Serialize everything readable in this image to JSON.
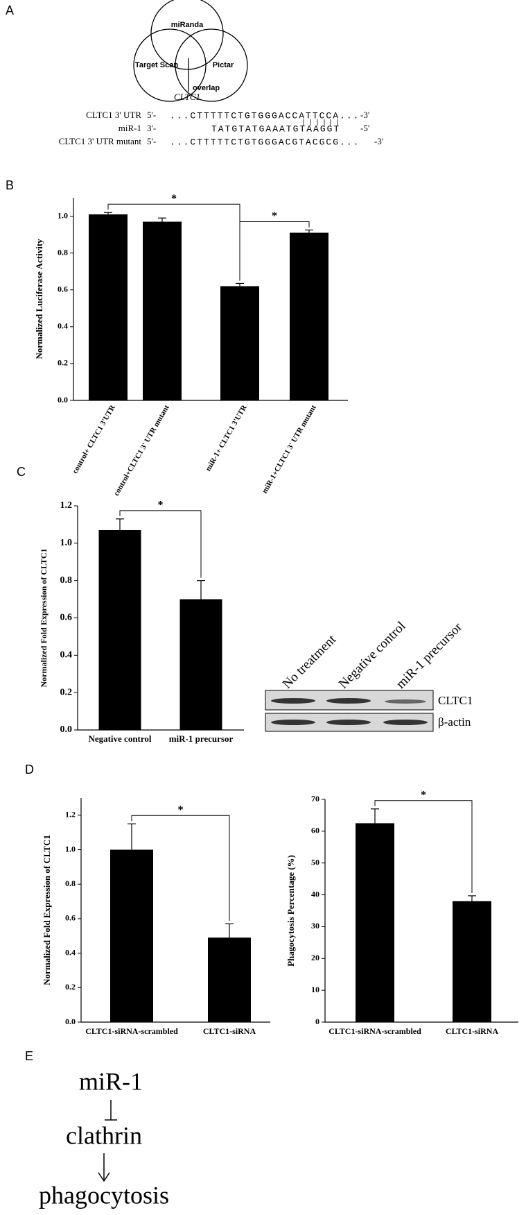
{
  "panel_labels": [
    "A",
    "B",
    "C",
    "D",
    "E"
  ],
  "venn": {
    "sets": [
      "miRanda",
      "Target Scan",
      "Pictar"
    ],
    "overlap_label": "overlap",
    "gene": "CLTC1"
  },
  "sequences": [
    {
      "name": "CLTC1 3' UTR",
      "start": "5'-",
      "seq": "...CTTTTTCTGTGGGACCATTCCA...",
      "end": "-3'"
    },
    {
      "name": "miR-1",
      "start": "3'-",
      "seq": "TATGTATGAAATGTAAGGT",
      "end": "-5'"
    },
    {
      "name": "CLTC1 3' UTR mutant",
      "start": "5'-",
      "seq": "...CTTTTTCTGTGGGACGTACGCG...",
      "end": "-3'"
    }
  ],
  "blot": {
    "lanes": [
      "No treatment",
      "Negative control",
      "miR-1 precursor"
    ],
    "rows": [
      "CLTC1",
      "β-actin"
    ]
  },
  "pathway": {
    "nodes": [
      "miR-1",
      "clathrin",
      "phagocytosis"
    ]
  },
  "chart_data": [
    {
      "type": "bar",
      "y_label": "Normalized Luciferase Activity",
      "categories": [
        "control+ CLTC1 3'UTR",
        "control+CLTC1 3' UTR mutant",
        "miR-1+ CLTC1 3'UTR",
        "miR-1+CLTC1 3' UTR mutant"
      ],
      "values": [
        1.01,
        0.97,
        0.62,
        0.91
      ],
      "errors": [
        0.01,
        0.02,
        0.015,
        0.015
      ],
      "color": "#000000",
      "ylim": [
        0,
        1.1
      ],
      "yticks": [
        {
          "value": 0,
          "label": "0.0"
        },
        {
          "value": 0.2,
          "label": "0.2"
        },
        {
          "value": 0.4,
          "label": "0.4"
        },
        {
          "value": 0.6,
          "label": "0.6"
        },
        {
          "value": 0.8,
          "label": "0.8"
        },
        {
          "value": 1,
          "label": "1.0"
        }
      ],
      "comparisons": [
        {
          "label": "*",
          "pair": [
            0,
            2
          ]
        },
        {
          "label": "*",
          "pair": [
            2,
            3
          ]
        }
      ]
    },
    {
      "type": "bar",
      "y_label": "Normalized Fold Expression of CLTC1",
      "categories": [
        "Negative control",
        "miR-1 precursor"
      ],
      "values": [
        1.07,
        0.7
      ],
      "errors": [
        0.06,
        0.1
      ],
      "color": "#000000",
      "ylim": [
        0,
        1.2
      ],
      "yticks": [
        {
          "value": 0,
          "label": "0.0"
        },
        {
          "value": 0.2,
          "label": "0.2"
        },
        {
          "value": 0.4,
          "label": "0.4"
        },
        {
          "value": 0.6,
          "label": "0.6"
        },
        {
          "value": 0.8,
          "label": "0.8"
        },
        {
          "value": 1,
          "label": "1.0"
        },
        {
          "value": 1.2,
          "label": "1.2"
        }
      ],
      "comparisons": [
        {
          "label": "*",
          "pair": [
            0,
            1
          ]
        }
      ]
    },
    {
      "type": "bar",
      "y_label": "Normalized Fold Expression of CLTC1",
      "categories": [
        "CLTC1-siRNA-scrambled",
        "CLTC1-siRNA"
      ],
      "values": [
        1.0,
        0.49
      ],
      "errors": [
        0.15,
        0.08
      ],
      "color": "#000000",
      "ylim": [
        0,
        1.3
      ],
      "yticks": [
        {
          "value": 0,
          "label": "0.0"
        },
        {
          "value": 0.2,
          "label": "0.2"
        },
        {
          "value": 0.4,
          "label": "0.4"
        },
        {
          "value": 0.6,
          "label": "0.6"
        },
        {
          "value": 0.8,
          "label": "0.8"
        },
        {
          "value": 1,
          "label": "1.0"
        },
        {
          "value": 1.2,
          "label": "1.2"
        }
      ],
      "comparisons": [
        {
          "label": "*",
          "pair": [
            0,
            1
          ]
        }
      ]
    },
    {
      "type": "bar",
      "y_label": "Phagocytosis Percentage (%)",
      "categories": [
        "CLTC1-siRNA-scrambled",
        "CLTC1-siRNA"
      ],
      "values": [
        62.5,
        38
      ],
      "errors": [
        4.5,
        1.7
      ],
      "color": "#000000",
      "ylim": [
        0,
        70
      ],
      "yticks": [
        0,
        10,
        20,
        30,
        40,
        50,
        60,
        70
      ],
      "comparisons": [
        {
          "label": "*",
          "pair": [
            0,
            1
          ]
        }
      ]
    }
  ]
}
